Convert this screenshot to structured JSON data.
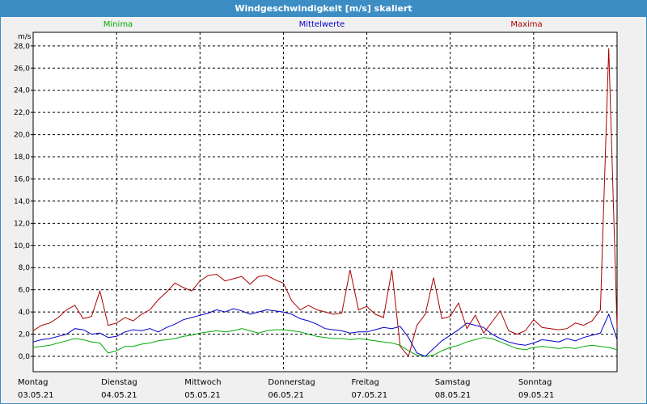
{
  "window": {
    "title": "Windgeschwindigkeit [m/s] skaliert"
  },
  "chart_data": {
    "type": "line",
    "title": "Windgeschwindigkeit [m/s] skaliert",
    "ylabel": "m/s",
    "ylim": [
      -1.0,
      30.0
    ],
    "y_ticks": [
      "0,0",
      "2,0",
      "4,0",
      "6,0",
      "8,0",
      "10,0",
      "12,0",
      "14,0",
      "16,0",
      "18,0",
      "20,0",
      "22,0",
      "24,0",
      "26,0",
      "28,0"
    ],
    "x_range": [
      0,
      7
    ],
    "x_ticks": [
      {
        "day": "Montag",
        "date": "03.05.21"
      },
      {
        "day": "Dienstag",
        "date": "04.05.21"
      },
      {
        "day": "Mittwoch",
        "date": "05.05.21"
      },
      {
        "day": "Donnerstag",
        "date": "06.05.21"
      },
      {
        "day": "Freitag",
        "date": "07.05.21"
      },
      {
        "day": "Samstag",
        "date": "08.05.21"
      },
      {
        "day": "Sonntag",
        "date": "09.05.21"
      }
    ],
    "grid": true,
    "legend_position": "top",
    "series": [
      {
        "name": "Minima",
        "color": "#00aa00",
        "x": [
          0,
          0.1,
          0.2,
          0.3,
          0.4,
          0.5,
          0.6,
          0.7,
          0.8,
          0.9,
          1.0,
          1.1,
          1.2,
          1.3,
          1.4,
          1.5,
          1.6,
          1.7,
          1.8,
          1.9,
          2.0,
          2.1,
          2.2,
          2.3,
          2.4,
          2.5,
          2.6,
          2.7,
          2.8,
          2.9,
          3.0,
          3.1,
          3.2,
          3.3,
          3.4,
          3.5,
          3.6,
          3.7,
          3.8,
          3.9,
          4.0,
          4.1,
          4.2,
          4.3,
          4.4,
          4.5,
          4.6,
          4.7,
          4.8,
          4.9,
          5.0,
          5.1,
          5.2,
          5.3,
          5.4,
          5.5,
          5.6,
          5.7,
          5.8,
          5.9,
          6.0,
          6.1,
          6.2,
          6.3,
          6.4,
          6.5,
          6.6,
          6.7,
          6.8,
          6.9,
          7.0
        ],
        "values": [
          0.8,
          0.9,
          1.0,
          1.2,
          1.4,
          1.6,
          1.5,
          1.3,
          1.2,
          0.3,
          0.5,
          0.9,
          0.9,
          1.1,
          1.2,
          1.4,
          1.5,
          1.6,
          1.8,
          1.9,
          2.1,
          2.2,
          2.3,
          2.2,
          2.3,
          2.5,
          2.3,
          2.1,
          2.3,
          2.4,
          2.4,
          2.3,
          2.2,
          2.0,
          1.8,
          1.7,
          1.6,
          1.6,
          1.5,
          1.6,
          1.5,
          1.4,
          1.3,
          1.2,
          1.0,
          0.5,
          0.1,
          0.0,
          0.1,
          0.5,
          0.8,
          1.0,
          1.3,
          1.5,
          1.7,
          1.6,
          1.3,
          1.0,
          0.7,
          0.6,
          0.8,
          0.9,
          0.8,
          0.7,
          0.8,
          0.7,
          0.9,
          1.0,
          0.9,
          0.8,
          0.6
        ]
      },
      {
        "name": "Mittelwerte",
        "color": "#0000cc",
        "x": [
          0,
          0.1,
          0.2,
          0.3,
          0.4,
          0.5,
          0.6,
          0.7,
          0.8,
          0.9,
          1.0,
          1.1,
          1.2,
          1.3,
          1.4,
          1.5,
          1.6,
          1.7,
          1.8,
          1.9,
          2.0,
          2.1,
          2.2,
          2.3,
          2.4,
          2.5,
          2.6,
          2.7,
          2.8,
          2.9,
          3.0,
          3.1,
          3.2,
          3.3,
          3.4,
          3.5,
          3.6,
          3.7,
          3.8,
          3.9,
          4.0,
          4.1,
          4.2,
          4.3,
          4.4,
          4.5,
          4.6,
          4.7,
          4.8,
          4.9,
          5.0,
          5.1,
          5.2,
          5.3,
          5.4,
          5.5,
          5.6,
          5.7,
          5.8,
          5.9,
          6.0,
          6.1,
          6.2,
          6.3,
          6.4,
          6.5,
          6.6,
          6.7,
          6.8,
          6.9,
          7.0
        ],
        "values": [
          1.3,
          1.5,
          1.6,
          1.8,
          2.0,
          2.5,
          2.4,
          2.0,
          2.1,
          1.7,
          1.8,
          2.2,
          2.4,
          2.3,
          2.5,
          2.2,
          2.6,
          2.9,
          3.3,
          3.5,
          3.7,
          3.9,
          4.2,
          4.0,
          4.3,
          4.1,
          3.8,
          4.0,
          4.2,
          4.1,
          4.0,
          3.8,
          3.4,
          3.2,
          2.9,
          2.5,
          2.4,
          2.3,
          2.1,
          2.2,
          2.2,
          2.4,
          2.6,
          2.5,
          2.7,
          1.7,
          0.3,
          0.0,
          0.7,
          1.4,
          1.9,
          2.4,
          3.0,
          2.8,
          2.6,
          2.0,
          1.6,
          1.3,
          1.1,
          1.0,
          1.2,
          1.5,
          1.4,
          1.3,
          1.6,
          1.4,
          1.7,
          1.9,
          2.1,
          3.8,
          1.5
        ]
      },
      {
        "name": "Maxima",
        "color": "#aa0000",
        "x": [
          0,
          0.1,
          0.2,
          0.3,
          0.4,
          0.5,
          0.6,
          0.7,
          0.8,
          0.9,
          1.0,
          1.1,
          1.2,
          1.3,
          1.4,
          1.5,
          1.6,
          1.7,
          1.8,
          1.9,
          2.0,
          2.1,
          2.2,
          2.3,
          2.4,
          2.5,
          2.6,
          2.7,
          2.8,
          2.9,
          3.0,
          3.1,
          3.2,
          3.3,
          3.4,
          3.5,
          3.6,
          3.7,
          3.8,
          3.9,
          4.0,
          4.1,
          4.2,
          4.3,
          4.4,
          4.5,
          4.6,
          4.7,
          4.8,
          4.9,
          5.0,
          5.1,
          5.2,
          5.3,
          5.4,
          5.5,
          5.6,
          5.7,
          5.8,
          5.9,
          6.0,
          6.1,
          6.2,
          6.3,
          6.4,
          6.5,
          6.6,
          6.7,
          6.8,
          6.9,
          7.0
        ],
        "values": [
          2.3,
          2.8,
          3.0,
          3.5,
          4.2,
          4.6,
          3.4,
          3.6,
          5.9,
          2.8,
          3.0,
          3.5,
          3.2,
          3.8,
          4.2,
          5.1,
          5.8,
          6.6,
          6.2,
          5.9,
          6.8,
          7.3,
          7.4,
          6.8,
          7.0,
          7.2,
          6.5,
          7.2,
          7.3,
          6.9,
          6.6,
          5.0,
          4.2,
          4.6,
          4.2,
          4.0,
          3.8,
          3.9,
          7.8,
          4.2,
          4.5,
          3.8,
          3.5,
          7.8,
          0.9,
          0.0,
          2.8,
          3.8,
          7.1,
          3.4,
          3.6,
          4.8,
          2.5,
          3.7,
          2.1,
          3.1,
          4.1,
          2.3,
          2.0,
          2.3,
          3.3,
          2.6,
          2.5,
          2.4,
          2.5,
          3.0,
          2.8,
          3.2,
          4.2,
          27.8,
          2.6
        ]
      }
    ]
  }
}
